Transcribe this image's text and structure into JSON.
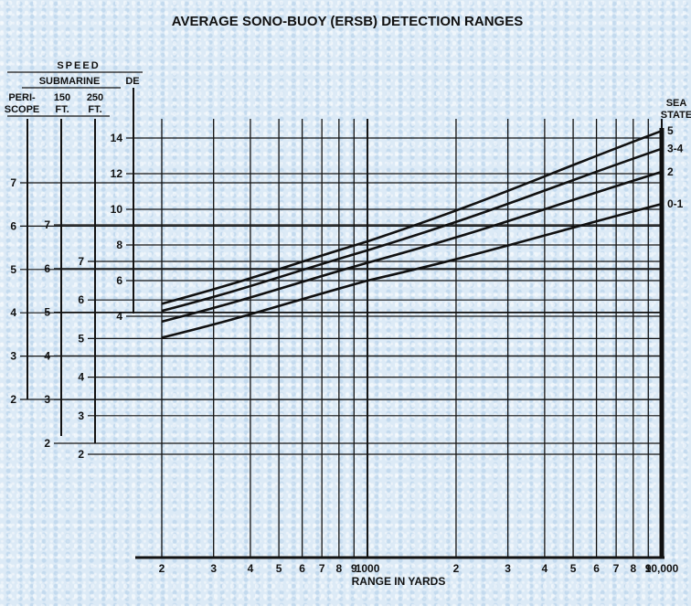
{
  "chart_data": {
    "type": "line",
    "title": "AVERAGE SONO-BUOY (ERSB) DETECTION RANGES",
    "xlabel": "RANGE IN YARDS",
    "x_scale": "log",
    "xlim": [
      200,
      10000
    ],
    "x_ticks": [
      "2",
      "3",
      "4",
      "5",
      "6",
      "7",
      "8",
      "9",
      "1000",
      "2",
      "3",
      "4",
      "5",
      "6",
      "7",
      "8",
      "9",
      "10,000"
    ],
    "x_tick_values": [
      200,
      300,
      400,
      500,
      600,
      700,
      800,
      900,
      1000,
      2000,
      3000,
      4000,
      5000,
      6000,
      7000,
      8000,
      9000,
      10000
    ],
    "grid": true,
    "scales": {
      "speed_header": "SPEED",
      "submarine_header": "SUBMARINE",
      "de_header": "DE",
      "periscope": {
        "label_line1": "PERI-",
        "label_line2": "SCOPE",
        "ticks": [
          "7",
          "6",
          "5",
          "4",
          "3",
          "2"
        ],
        "values": [
          7,
          6,
          5,
          4,
          3,
          2
        ]
      },
      "ft150": {
        "label_line1": "150",
        "label_line2": "FT.",
        "ticks": [
          "7",
          "6",
          "5",
          "4",
          "3",
          "2"
        ],
        "values": [
          7,
          6,
          5,
          4,
          3,
          2
        ]
      },
      "ft250": {
        "label_line1": "250",
        "label_line2": "FT.",
        "ticks": [
          "7",
          "6",
          "5",
          "4",
          "3",
          "2"
        ],
        "values": [
          7,
          6,
          5,
          4,
          3,
          2
        ]
      },
      "de": {
        "label": "DE",
        "ticks": [
          "14",
          "12",
          "10",
          "8",
          "6",
          "4"
        ],
        "values": [
          14,
          12,
          10,
          8,
          6,
          4
        ]
      }
    },
    "sea_state_header": [
      "SEA",
      "STATE"
    ],
    "series": [
      {
        "name": "5",
        "points": [
          [
            200,
            4.7
          ],
          [
            1000,
            8.2
          ],
          [
            10000,
            14.4
          ]
        ]
      },
      {
        "name": "3-4",
        "points": [
          [
            200,
            4.3
          ],
          [
            1000,
            7.7
          ],
          [
            10000,
            13.4
          ]
        ]
      },
      {
        "name": "2",
        "points": [
          [
            200,
            3.7
          ],
          [
            1000,
            7.0
          ],
          [
            10000,
            12.1
          ]
        ]
      },
      {
        "name": "0-1",
        "points": [
          [
            200,
            2.8
          ],
          [
            1000,
            6.0
          ],
          [
            10000,
            10.3
          ]
        ]
      }
    ]
  }
}
